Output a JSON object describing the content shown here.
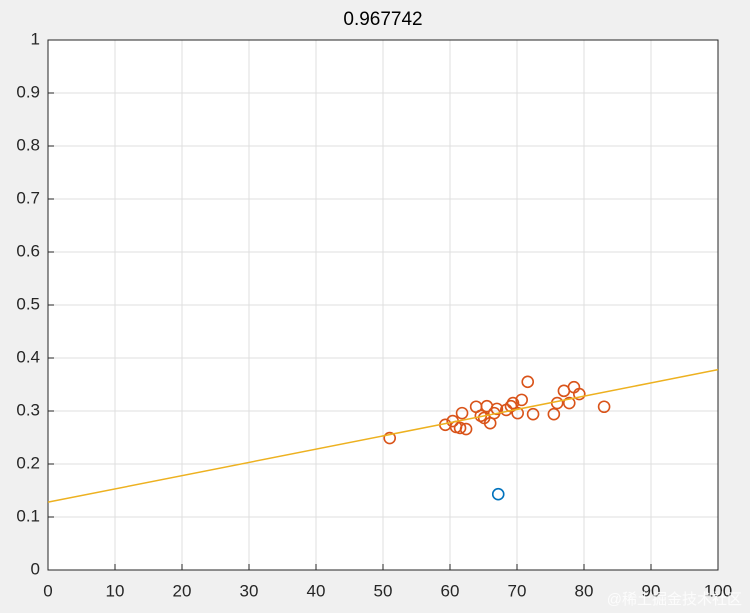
{
  "chart_data": {
    "type": "scatter",
    "title": "0.967742",
    "xlim": [
      0,
      100
    ],
    "xticks": [
      0,
      10,
      20,
      30,
      40,
      50,
      60,
      70,
      80,
      90,
      100
    ],
    "ylim": [
      0,
      1
    ],
    "yticks": [
      0,
      0.1,
      0.2,
      0.3,
      0.4,
      0.5,
      0.6,
      0.7,
      0.8,
      0.9,
      1
    ],
    "grid": true,
    "series": [
      {
        "type": "scatter",
        "color": "#d95319",
        "x": [
          51.0,
          59.3,
          60.4,
          60.9,
          61.5,
          61.8,
          62.4,
          63.9,
          64.6,
          65.1,
          65.5,
          66.0,
          66.6,
          67.0,
          68.4,
          69.1,
          69.4,
          70.1,
          70.7,
          71.6,
          72.4,
          75.5,
          76.0,
          77.0,
          77.8,
          78.5,
          79.3,
          83.0
        ],
        "values": [
          0.249,
          0.274,
          0.281,
          0.27,
          0.268,
          0.296,
          0.266,
          0.308,
          0.291,
          0.287,
          0.309,
          0.277,
          0.296,
          0.304,
          0.302,
          0.309,
          0.315,
          0.296,
          0.321,
          0.355,
          0.294,
          0.294,
          0.315,
          0.338,
          0.315,
          0.345,
          0.332,
          0.308
        ]
      },
      {
        "type": "scatter",
        "color": "#0072bd",
        "x": [
          67.2
        ],
        "values": [
          0.143
        ]
      },
      {
        "type": "line",
        "color": "#edb120",
        "x": [
          0,
          100
        ],
        "values": [
          0.128,
          0.378
        ]
      }
    ]
  },
  "watermark": "@稀土掘金技术社区"
}
